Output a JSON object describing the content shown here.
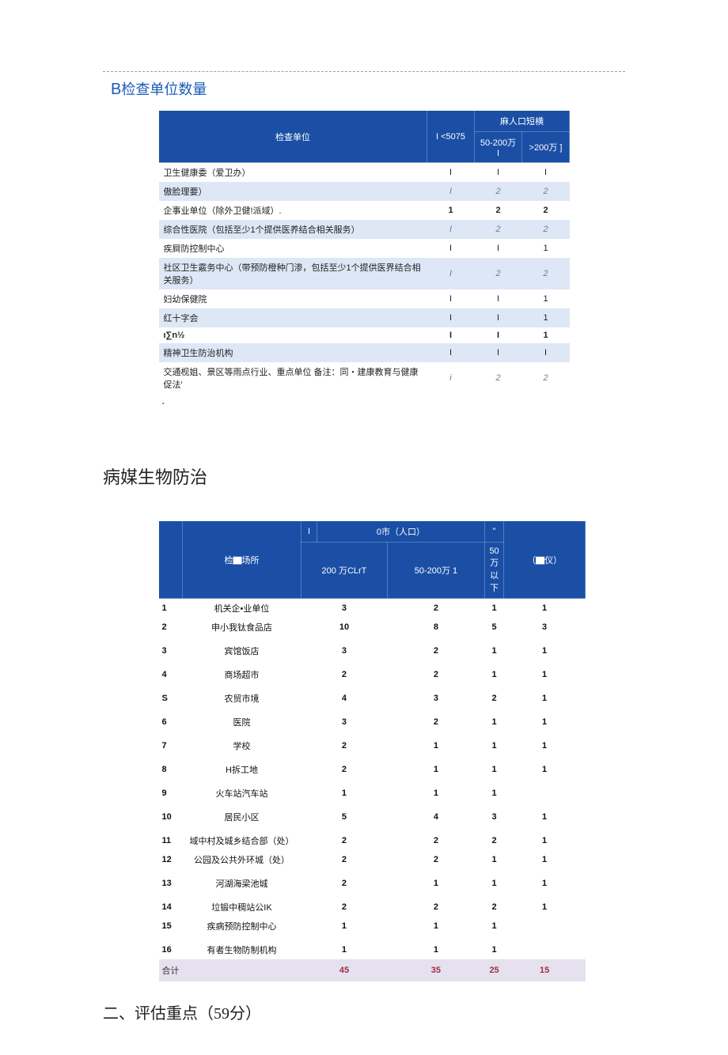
{
  "section_b": {
    "title_prefix": "B",
    "title": "检查单位数量"
  },
  "table1": {
    "header": {
      "unit_col": "检查单位",
      "pop_group": "麻人口短横",
      "c1": "I <5075",
      "c2": "50-200万 I",
      "c3": ">200万 ]"
    },
    "rows": [
      {
        "name": "卫生健康委（爱卫办）",
        "v": [
          "I",
          "I",
          "I"
        ],
        "italic": false
      },
      {
        "name": "傲脸理要）",
        "v": [
          "I",
          "2",
          "2"
        ],
        "italic": true
      },
      {
        "name": "企事业单位（除外卫健!派域）.",
        "v": [
          "1",
          "2",
          "2"
        ],
        "italic": false,
        "bold": true
      },
      {
        "name": "综合性医院（包括至少1个提供医养结合相关服务）",
        "v": [
          "I",
          "2",
          "2"
        ],
        "italic": true
      },
      {
        "name": "疾屙防控制中心",
        "v": [
          "I",
          "I",
          "1"
        ],
        "italic": false
      },
      {
        "name": "社区卫生霰务中心（带预防橙种门渗，包括至少1个提供医界结合相关服务）",
        "v": [
          "I",
          "2",
          "2"
        ],
        "italic": true
      },
      {
        "name": "妇幼保健院",
        "v": [
          "I",
          "I",
          "1"
        ],
        "italic": false
      },
      {
        "name": "红十字会",
        "v": [
          "I",
          "I",
          "1"
        ],
        "italic": false
      },
      {
        "name": "ι∑n½",
        "v": [
          "I",
          "I",
          "1"
        ],
        "italic": false,
        "boldrow": true
      },
      {
        "name": "精神卫生防治机构",
        "v": [
          "I",
          "I",
          "I"
        ],
        "italic": false
      },
      {
        "name": "交通枧姐、景区等雨点行业、重点单位 备注：同・建康教育与健康促法'",
        "v": [
          "i",
          "2",
          "2"
        ],
        "italic": true
      }
    ]
  },
  "section_mid": {
    "title": "病媒生物防治"
  },
  "table2": {
    "header": {
      "place_col": "检▇场所",
      "group": "0市（人口）",
      "c1": "200 万CLrT",
      "c2": "50-200万 1",
      "c3": "50万以下",
      "last": "（▇仪）",
      "idxmark": "I",
      "lastmark": "\""
    },
    "rows": [
      {
        "i": "1",
        "p": "机关企•业单位",
        "v": [
          "3",
          "2",
          "1",
          "1"
        ]
      },
      {
        "i": "2",
        "p": "申小我钛食品店",
        "v": [
          "10",
          "8",
          "5",
          "3"
        ]
      },
      {
        "i": "3",
        "p": "宾馆饭店",
        "v": [
          "3",
          "2",
          "1",
          "1"
        ],
        "sp": true
      },
      {
        "i": "4",
        "p": "商场超市",
        "v": [
          "2",
          "2",
          "1",
          "1"
        ],
        "sp": true
      },
      {
        "i": "S",
        "p": "农贸市境",
        "v": [
          "4",
          "3",
          "2",
          "1"
        ],
        "sp": true
      },
      {
        "i": "6",
        "p": "医院",
        "v": [
          "3",
          "2",
          "1",
          "1"
        ],
        "sp": true
      },
      {
        "i": "7",
        "p": "学校",
        "v": [
          "2",
          "1",
          "1",
          "1"
        ],
        "sp": true
      },
      {
        "i": "8",
        "p": "H拆工地",
        "v": [
          "2",
          "1",
          "1",
          "1"
        ],
        "sp": true
      },
      {
        "i": "9",
        "p": "火车站汽车站",
        "v": [
          "1",
          "1",
          "1",
          ""
        ],
        "sp": true
      },
      {
        "i": "10",
        "p": "居民小区",
        "v": [
          "5",
          "4",
          "3",
          "1"
        ],
        "sp": true
      },
      {
        "i": "11",
        "p": "域中村及城乡结合部（处）",
        "v": [
          "2",
          "2",
          "2",
          "1"
        ],
        "sp": true
      },
      {
        "i": "12",
        "p": "公园及公共外环城（处）",
        "v": [
          "2",
          "2",
          "1",
          "1"
        ]
      },
      {
        "i": "13",
        "p": "河湖海梁池城",
        "v": [
          "2",
          "1",
          "1",
          "1"
        ],
        "sp": true
      },
      {
        "i": "14",
        "p": "垃锻中稠站公IK",
        "v": [
          "2",
          "2",
          "2",
          "1"
        ],
        "sp": true
      },
      {
        "i": "15",
        "p": "疾病预防控制中心",
        "v": [
          "1",
          "1",
          "1",
          ""
        ]
      },
      {
        "i": "16",
        "p": "有者生物防制机构",
        "v": [
          "1",
          "1",
          "1",
          ""
        ],
        "sp": true
      }
    ],
    "footer": {
      "label": "合计",
      "v": [
        "45",
        "35",
        "25",
        "15"
      ]
    }
  },
  "section_2": {
    "title": "二、评估重点（59分）"
  }
}
